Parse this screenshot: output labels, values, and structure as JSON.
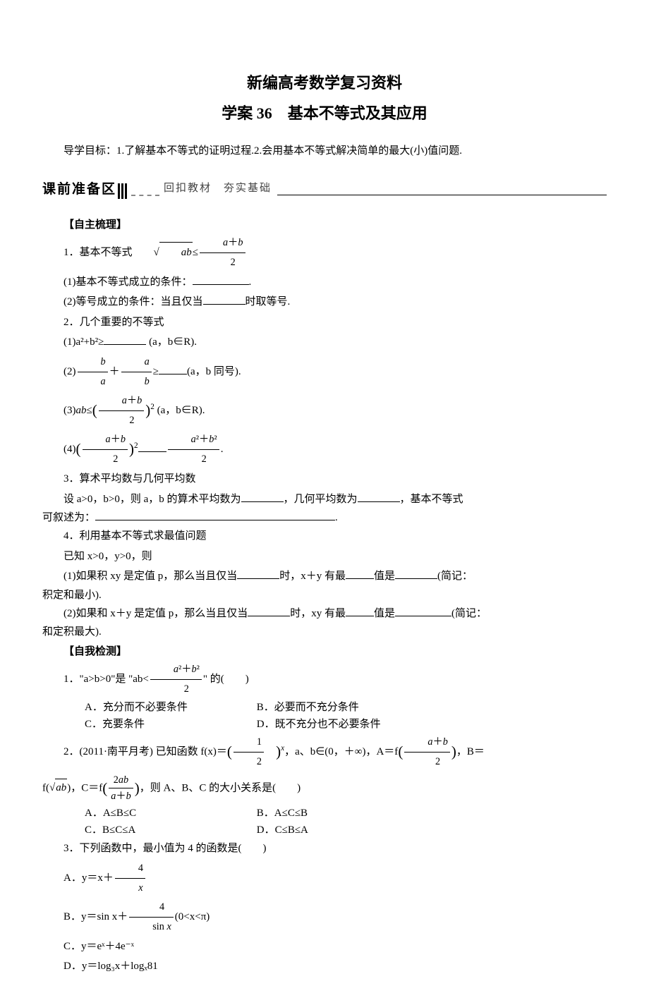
{
  "title_main": "新编高考数学复习资料",
  "title_sub": "学案 36　基本不等式及其应用",
  "objective": "导学目标：1.了解基本不等式的证明过程.2.会用基本不等式解决简单的最大(小)值问题.",
  "banner": {
    "label": "课前准备区",
    "right": "回扣教材　夯实基础"
  },
  "h_selfstudy": "【自主梳理】",
  "s1": {
    "head": "1．基本不等式",
    "l1": "(1)基本不等式成立的条件：",
    "l1_end": ".",
    "l2a": "(2)等号成立的条件：当且仅当",
    "l2b": "时取等号."
  },
  "s2": {
    "head": "2．几个重要的不等式",
    "l1a": "(1)a²+b²≥",
    "l1b": " (a，b∈R).",
    "l2b": "(a，b 同号).",
    "l3b": " (a，b∈R).",
    "l4b": "."
  },
  "s3": {
    "head": "3．算术平均数与几何平均数",
    "l1a": "设 a>0，b>0，则 a，b 的算术平均数为",
    "l1b": "，几何平均数为",
    "l1c": "，基本不等式",
    "l2a": "可叙述为：",
    "l2b": "."
  },
  "s4": {
    "head": "4．利用基本不等式求最值问题",
    "l0": "已知 x>0，y>0，则",
    "l1a": "(1)如果积 xy 是定值 p，那么当且仅当",
    "l1b": "时，x＋y 有最",
    "l1c": "值是",
    "l1d": "(简记：",
    "l1e": "积定和最小).",
    "l2a": "(2)如果和 x＋y 是定值 p，那么当且仅当",
    "l2b": "时，xy 有最",
    "l2c": "值是",
    "l2d": "(简记：",
    "l2e": "和定积最大)."
  },
  "h_selftest": "【自我检测】",
  "q1": {
    "stem_a": "1．\"a>b>0\"是 \"ab<",
    "stem_b": "\" 的(　　)",
    "A": "A．充分而不必要条件",
    "B": "B．必要而不充分条件",
    "C": "C．充要条件",
    "D": "D．既不充分也不必要条件"
  },
  "q2": {
    "stem_a": "2．(2011·南平月考) 已知函数 f(x)＝",
    "stem_b": "，a、b∈(0，＋∞)，A＝f",
    "stem_c": "，B＝",
    "stem_d": "f(",
    "stem_e": ")，C＝f",
    "stem_f": "，则 A、B、C 的大小关系是(　　)",
    "A": "A．A≤B≤C",
    "B": "B．A≤C≤B",
    "C": "C．B≤C≤A",
    "D": "D．C≤B≤A"
  },
  "q3": {
    "stem": "3．下列函数中，最小值为 4 的函数是(　　)",
    "A": "A．y＝x＋",
    "B": "B．y＝sin x＋",
    "B_tail": "(0<x<π)",
    "C": "C．y＝eˣ＋4e⁻ˣ",
    "D": "D．y＝log₃x＋logₓ81"
  }
}
